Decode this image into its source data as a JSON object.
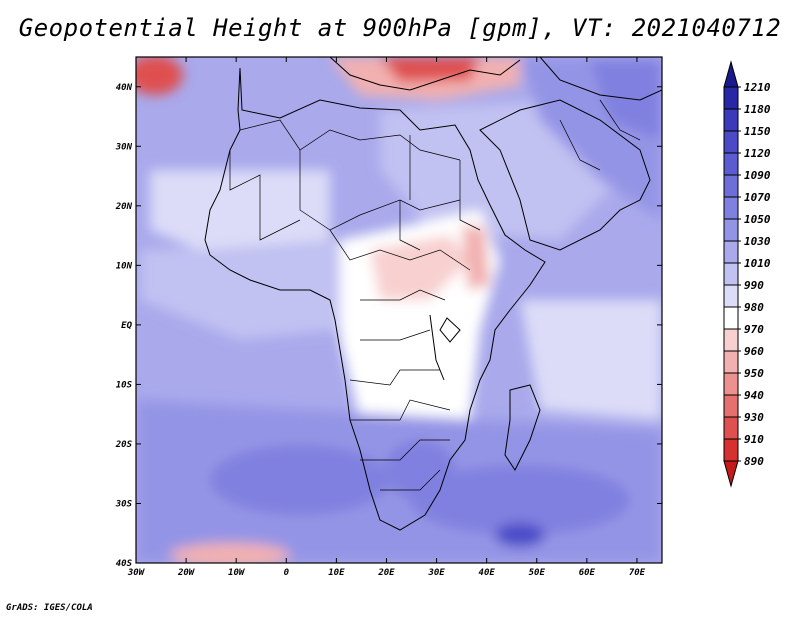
{
  "title": "Geopotential Height at 900hPa [gpm], VT: 2021040712",
  "credit": "GrADS: IGES/COLA",
  "map": {
    "lon_labels": [
      "30W",
      "20W",
      "10W",
      "0",
      "10E",
      "20E",
      "30E",
      "40E",
      "50E",
      "60E",
      "70E"
    ],
    "lat_labels": [
      "40N",
      "30N",
      "20N",
      "10N",
      "EQ",
      "10S",
      "20S",
      "30S",
      "40S"
    ],
    "lon_range": [
      -30,
      75
    ],
    "lat_range": [
      -40,
      45
    ]
  },
  "colorbar": {
    "labels": [
      "1210",
      "1180",
      "1150",
      "1120",
      "1090",
      "1070",
      "1050",
      "1030",
      "1010",
      "990",
      "980",
      "970",
      "960",
      "950",
      "940",
      "930",
      "910",
      "890"
    ],
    "colors": [
      "#1a1a8c",
      "#2828a6",
      "#3a3abb",
      "#4b4bc8",
      "#5c5cd2",
      "#6e6ed9",
      "#8080e0",
      "#9494e6",
      "#a9a9ec",
      "#c1c1f2",
      "#dcdcf8",
      "#ffffff",
      "#f8d0d0",
      "#f2b0b0",
      "#ec9090",
      "#e67070",
      "#df5050",
      "#d63030",
      "#c41a1a"
    ]
  }
}
